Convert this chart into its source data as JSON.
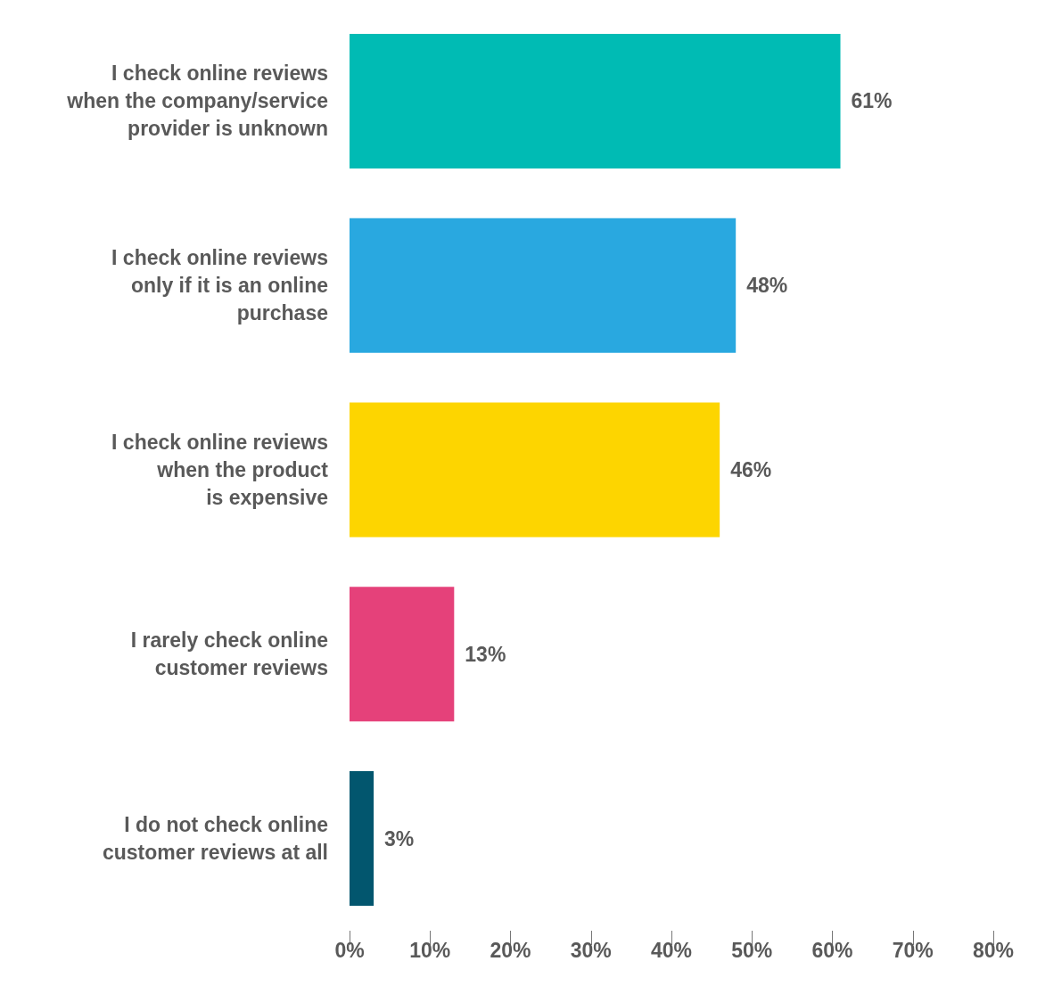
{
  "chart_data": {
    "type": "bar",
    "orientation": "horizontal",
    "categories": [
      "I check online reviews\nwhen the company/service\nprovider is unknown",
      "I check online reviews\nonly if it is an online\npurchase",
      "I check online reviews\nwhen the product\nis expensive",
      "I rarely check online\ncustomer reviews",
      "I do not check online\ncustomer reviews at all"
    ],
    "values": [
      61,
      48,
      46,
      13,
      3
    ],
    "colors": [
      "#00bbb4",
      "#29a8e0",
      "#fdd500",
      "#e5417a",
      "#02566e"
    ],
    "value_labels": [
      "61%",
      "48%",
      "46%",
      "13%",
      "3%"
    ],
    "xlim": [
      0,
      80
    ],
    "xticks": [
      {
        "value": 0,
        "label": "0%"
      },
      {
        "value": 10,
        "label": "10%"
      },
      {
        "value": 20,
        "label": "20%"
      },
      {
        "value": 30,
        "label": "30%"
      },
      {
        "value": 40,
        "label": "40%"
      },
      {
        "value": 50,
        "label": "50%"
      },
      {
        "value": 60,
        "label": "60%"
      },
      {
        "value": 70,
        "label": "70%"
      },
      {
        "value": 80,
        "label": "80%"
      }
    ],
    "grid": false
  }
}
